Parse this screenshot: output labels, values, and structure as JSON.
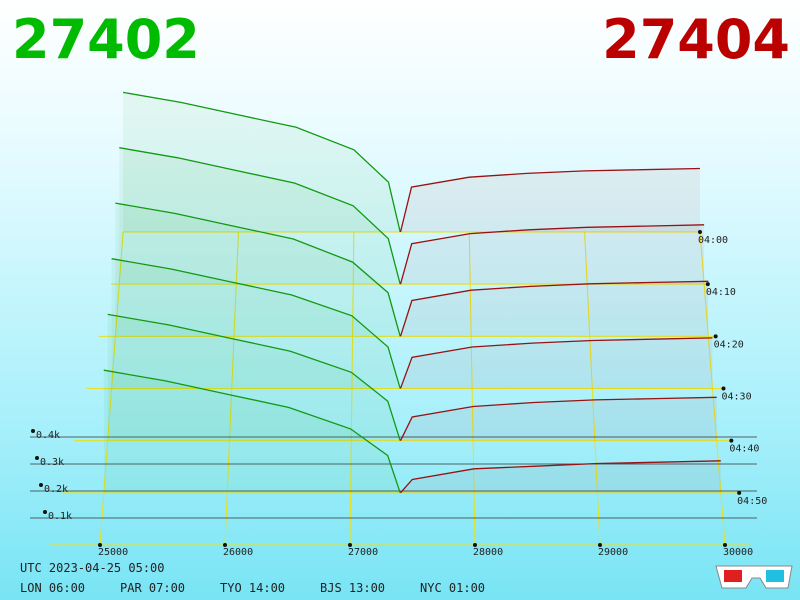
{
  "chart_data": {
    "type": "depth3d",
    "bid_price": 27402,
    "ask_price": 27404,
    "bid_color": "#00bb00",
    "ask_color": "#bb0000",
    "xlim": [
      25000,
      30000
    ],
    "xticks": [
      25000,
      26000,
      27000,
      28000,
      29000,
      30000
    ],
    "zticks": [
      {
        "value": 100,
        "label": "0.1k"
      },
      {
        "value": 200,
        "label": "0.2k"
      },
      {
        "value": 300,
        "label": "0.3k"
      },
      {
        "value": 400,
        "label": "0.4k"
      }
    ],
    "tlim": [
      "04:00",
      "05:00"
    ],
    "times": [
      "04:00",
      "04:10",
      "04:20",
      "04:30",
      "04:40",
      "04:50"
    ],
    "bids": {
      "color": "#119911",
      "prices": [
        25000,
        25500,
        26000,
        26500,
        27000,
        27300,
        27402
      ],
      "depths": [
        [
          560,
          520,
          470,
          420,
          330,
          200,
          0
        ],
        [
          540,
          500,
          450,
          400,
          310,
          180,
          0
        ],
        [
          520,
          480,
          430,
          380,
          290,
          170,
          0
        ],
        [
          500,
          460,
          410,
          360,
          280,
          160,
          0
        ],
        [
          480,
          440,
          390,
          340,
          260,
          150,
          0
        ],
        [
          460,
          420,
          370,
          320,
          240,
          140,
          0
        ]
      ]
    },
    "asks": {
      "color": "#991111",
      "prices": [
        27404,
        27500,
        28000,
        28500,
        29000,
        29500,
        30000
      ],
      "depths": [
        [
          0,
          180,
          220,
          235,
          245,
          250,
          255
        ],
        [
          0,
          160,
          200,
          215,
          225,
          230,
          235
        ],
        [
          0,
          140,
          180,
          195,
          205,
          210,
          215
        ],
        [
          0,
          120,
          160,
          175,
          185,
          190,
          195
        ],
        [
          0,
          90,
          130,
          145,
          155,
          160,
          165
        ],
        [
          0,
          50,
          90,
          100,
          110,
          115,
          120
        ]
      ]
    },
    "utc": "UTC 2023-04-25 05:00",
    "clocks": [
      "LON 06:00",
      "PAR 07:00",
      "TYO 14:00",
      "BJS 13:00",
      "NYC 01:00"
    ]
  }
}
